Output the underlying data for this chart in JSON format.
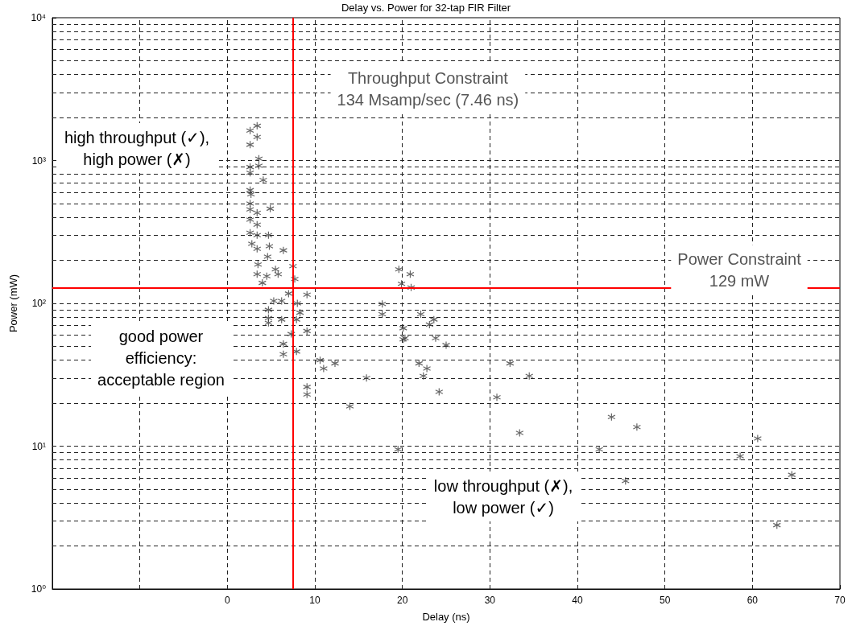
{
  "chart_data": {
    "type": "scatter",
    "title": "Delay vs. Power for 32-tap FIR Filter",
    "xlabel": "Delay (ns)",
    "ylabel": "Power (mW)",
    "log": "y",
    "grid": true,
    "marker": "cross",
    "xlim": [
      -20,
      70
    ],
    "xticks": [
      {
        "value": -20,
        "label": null
      },
      {
        "value": -10,
        "label": null
      },
      0,
      10,
      20,
      30,
      40,
      50,
      60,
      70
    ],
    "ylim": [
      1,
      10000
    ],
    "yticks": [
      {
        "value": 1,
        "label": "10⁰"
      },
      {
        "value": 2,
        "label": null
      },
      {
        "value": 3,
        "label": null
      },
      {
        "value": 4,
        "label": null
      },
      {
        "value": 5,
        "label": null
      },
      {
        "value": 6,
        "label": null
      },
      {
        "value": 7,
        "label": null
      },
      {
        "value": 8,
        "label": null
      },
      {
        "value": 9,
        "label": null
      },
      {
        "value": 10,
        "label": "10¹"
      },
      {
        "value": 20,
        "label": null
      },
      {
        "value": 30,
        "label": null
      },
      {
        "value": 40,
        "label": null
      },
      {
        "value": 50,
        "label": null
      },
      {
        "value": 60,
        "label": null
      },
      {
        "value": 70,
        "label": null
      },
      {
        "value": 80,
        "label": null
      },
      {
        "value": 90,
        "label": null
      },
      {
        "value": 100,
        "label": "10²"
      },
      {
        "value": 200,
        "label": null
      },
      {
        "value": 300,
        "label": null
      },
      {
        "value": 400,
        "label": null
      },
      {
        "value": 500,
        "label": null
      },
      {
        "value": 600,
        "label": null
      },
      {
        "value": 700,
        "label": null
      },
      {
        "value": 800,
        "label": null
      },
      {
        "value": 900,
        "label": null
      },
      {
        "value": 1000,
        "label": "10³"
      },
      {
        "value": 2000,
        "label": null
      },
      {
        "value": 3000,
        "label": null
      },
      {
        "value": 4000,
        "label": null
      },
      {
        "value": 5000,
        "label": null
      },
      {
        "value": 6000,
        "label": null
      },
      {
        "value": 7000,
        "label": null
      },
      {
        "value": 8000,
        "label": null
      },
      {
        "value": 9000,
        "label": null
      },
      {
        "value": 10000,
        "label": "10⁴"
      }
    ],
    "ref_lines": [
      {
        "axis": "x",
        "value": 7.46,
        "label": "Throughput Constraint\n134 Msamp/sec (7.46 ns)",
        "color": "#ff0000"
      },
      {
        "axis": "y",
        "value": 129,
        "label": "Power Constraint\n129 mW",
        "color": "#ff0000"
      }
    ],
    "annotations": [
      "high throughput (✓),\nhigh power (✗)",
      "good power\nefficiency:\nacceptable region",
      "low throughput (✗),\nlow power (✓)"
    ],
    "series": [
      {
        "color": "#404040",
        "x": [
          3.4,
          2.6,
          3.4,
          2.6,
          3.6,
          3.6,
          2.6,
          2.6,
          4.1,
          2.6,
          2.7,
          2.6,
          2.6,
          4.9,
          3.4,
          2.6,
          3.4,
          2.6,
          3.4,
          4.7,
          2.8,
          3.4,
          4.8,
          6.4,
          4.6,
          3.5,
          5.5,
          7.5,
          3.4,
          4.5,
          5.8,
          4.0,
          7.7,
          7.0,
          9.1,
          5.3,
          6.2,
          4.7,
          8.0,
          4.7,
          6.2,
          8.3,
          7.9,
          4.7,
          9.1,
          7.3,
          6.4,
          7.9,
          6.4,
          10.6,
          12.3,
          11.0,
          9.1,
          9.1,
          19.6,
          20.9,
          19.9,
          21.0,
          17.7,
          17.7,
          22.1,
          23.6,
          23.1,
          20.1,
          20.1,
          20.3,
          23.8,
          25.0,
          21.9,
          22.8,
          22.4,
          15.9,
          24.2,
          14.0,
          32.3,
          34.5,
          30.8,
          33.4,
          43.9,
          46.8,
          42.5,
          45.5,
          60.6,
          58.6,
          64.5,
          62.8,
          19.5
        ],
        "values": [
          1750,
          1620,
          1460,
          1290,
          1030,
          920,
          900,
          820,
          730,
          620,
          580,
          500,
          455,
          460,
          430,
          385,
          355,
          312,
          300,
          300,
          261,
          241,
          251,
          235,
          212,
          187,
          173,
          182,
          160,
          155,
          160,
          139,
          148,
          117,
          115,
          104,
          104,
          90,
          100,
          79,
          77,
          86,
          77,
          73,
          64,
          61,
          52,
          46,
          44,
          40,
          38,
          35,
          26,
          23,
          173,
          160,
          137,
          129,
          99,
          84,
          84,
          77,
          71,
          67,
          56,
          57,
          57,
          51,
          38,
          35,
          31,
          30,
          24,
          19,
          38,
          31,
          22,
          12.4,
          16,
          13.6,
          9.5,
          5.7,
          11.3,
          8.5,
          6.3,
          2.8,
          9.5
        ]
      }
    ]
  }
}
